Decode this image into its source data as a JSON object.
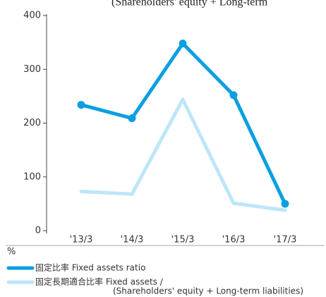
{
  "chart_data": {
    "type": "line",
    "annotation": "(Shareholders' equity + Long-term",
    "y_unit": "%",
    "categories": [
      "'13/3",
      "'14/3",
      "'15/3",
      "'16/3",
      "'17/3"
    ],
    "series": [
      {
        "name": "固定比率 Fixed assets ratio",
        "color": "#0a9fe0",
        "values": [
          234,
          209,
          348,
          252,
          50
        ]
      },
      {
        "name": "固定長期適合比率 Fixed assets /",
        "name_line2": "(Shareholders' equity + Long-term liabilities)",
        "color": "#bde6f8",
        "values": [
          73,
          68,
          244,
          51,
          38
        ]
      }
    ],
    "ylim": [
      0,
      400
    ],
    "yticks": [
      0,
      100,
      200,
      300,
      400
    ]
  }
}
